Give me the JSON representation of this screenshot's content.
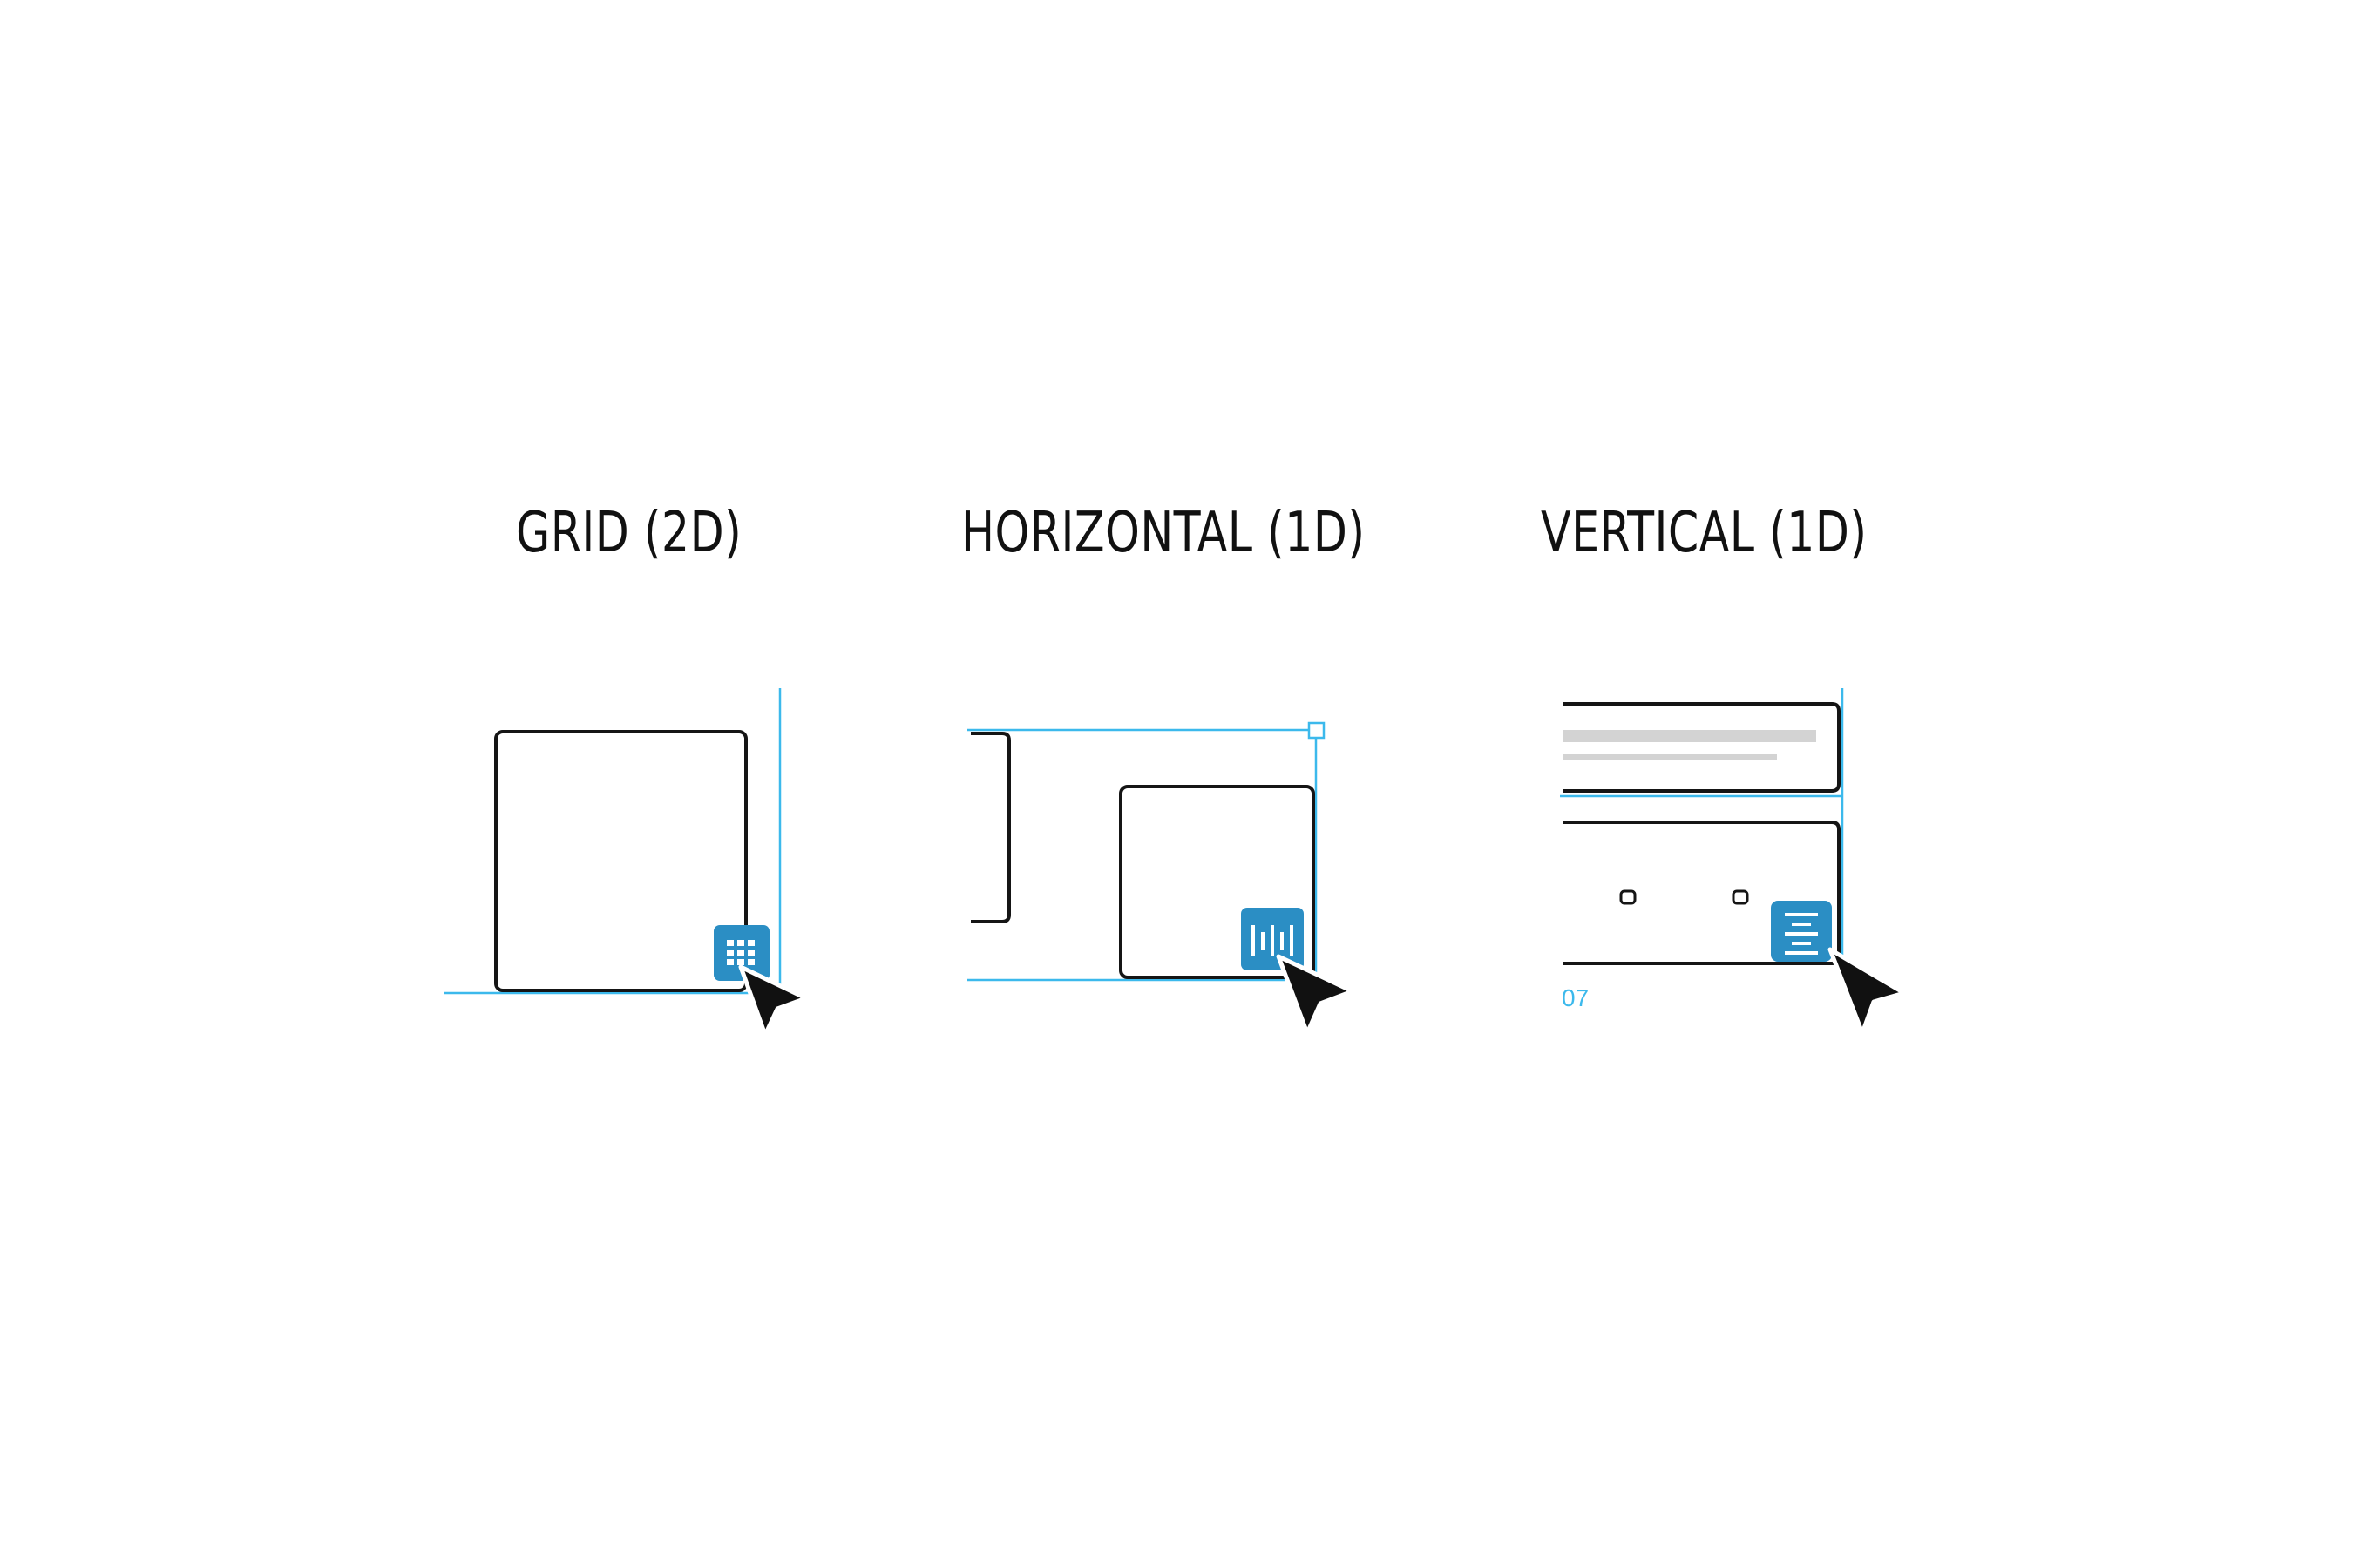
{
  "panels": [
    {
      "title": "GRID (2D)",
      "badge_icon": "grid-layout-icon",
      "cursor_icon": "arrow-cursor-icon"
    },
    {
      "title": "HORIZONTAL (1D)",
      "badge_icon": "horizontal-layout-icon",
      "cursor_icon": "arrow-cursor-icon"
    },
    {
      "title": "VERTICAL (1D)",
      "badge_icon": "vertical-layout-icon",
      "cursor_icon": "arrow-cursor-icon",
      "measurement_label": "07"
    }
  ],
  "colors": {
    "guide": "#3cb9ec",
    "badge": "#2b8ec4",
    "frame_stroke": "#151515",
    "text_bar": "#d3d3d3",
    "cursor": "#111111"
  }
}
